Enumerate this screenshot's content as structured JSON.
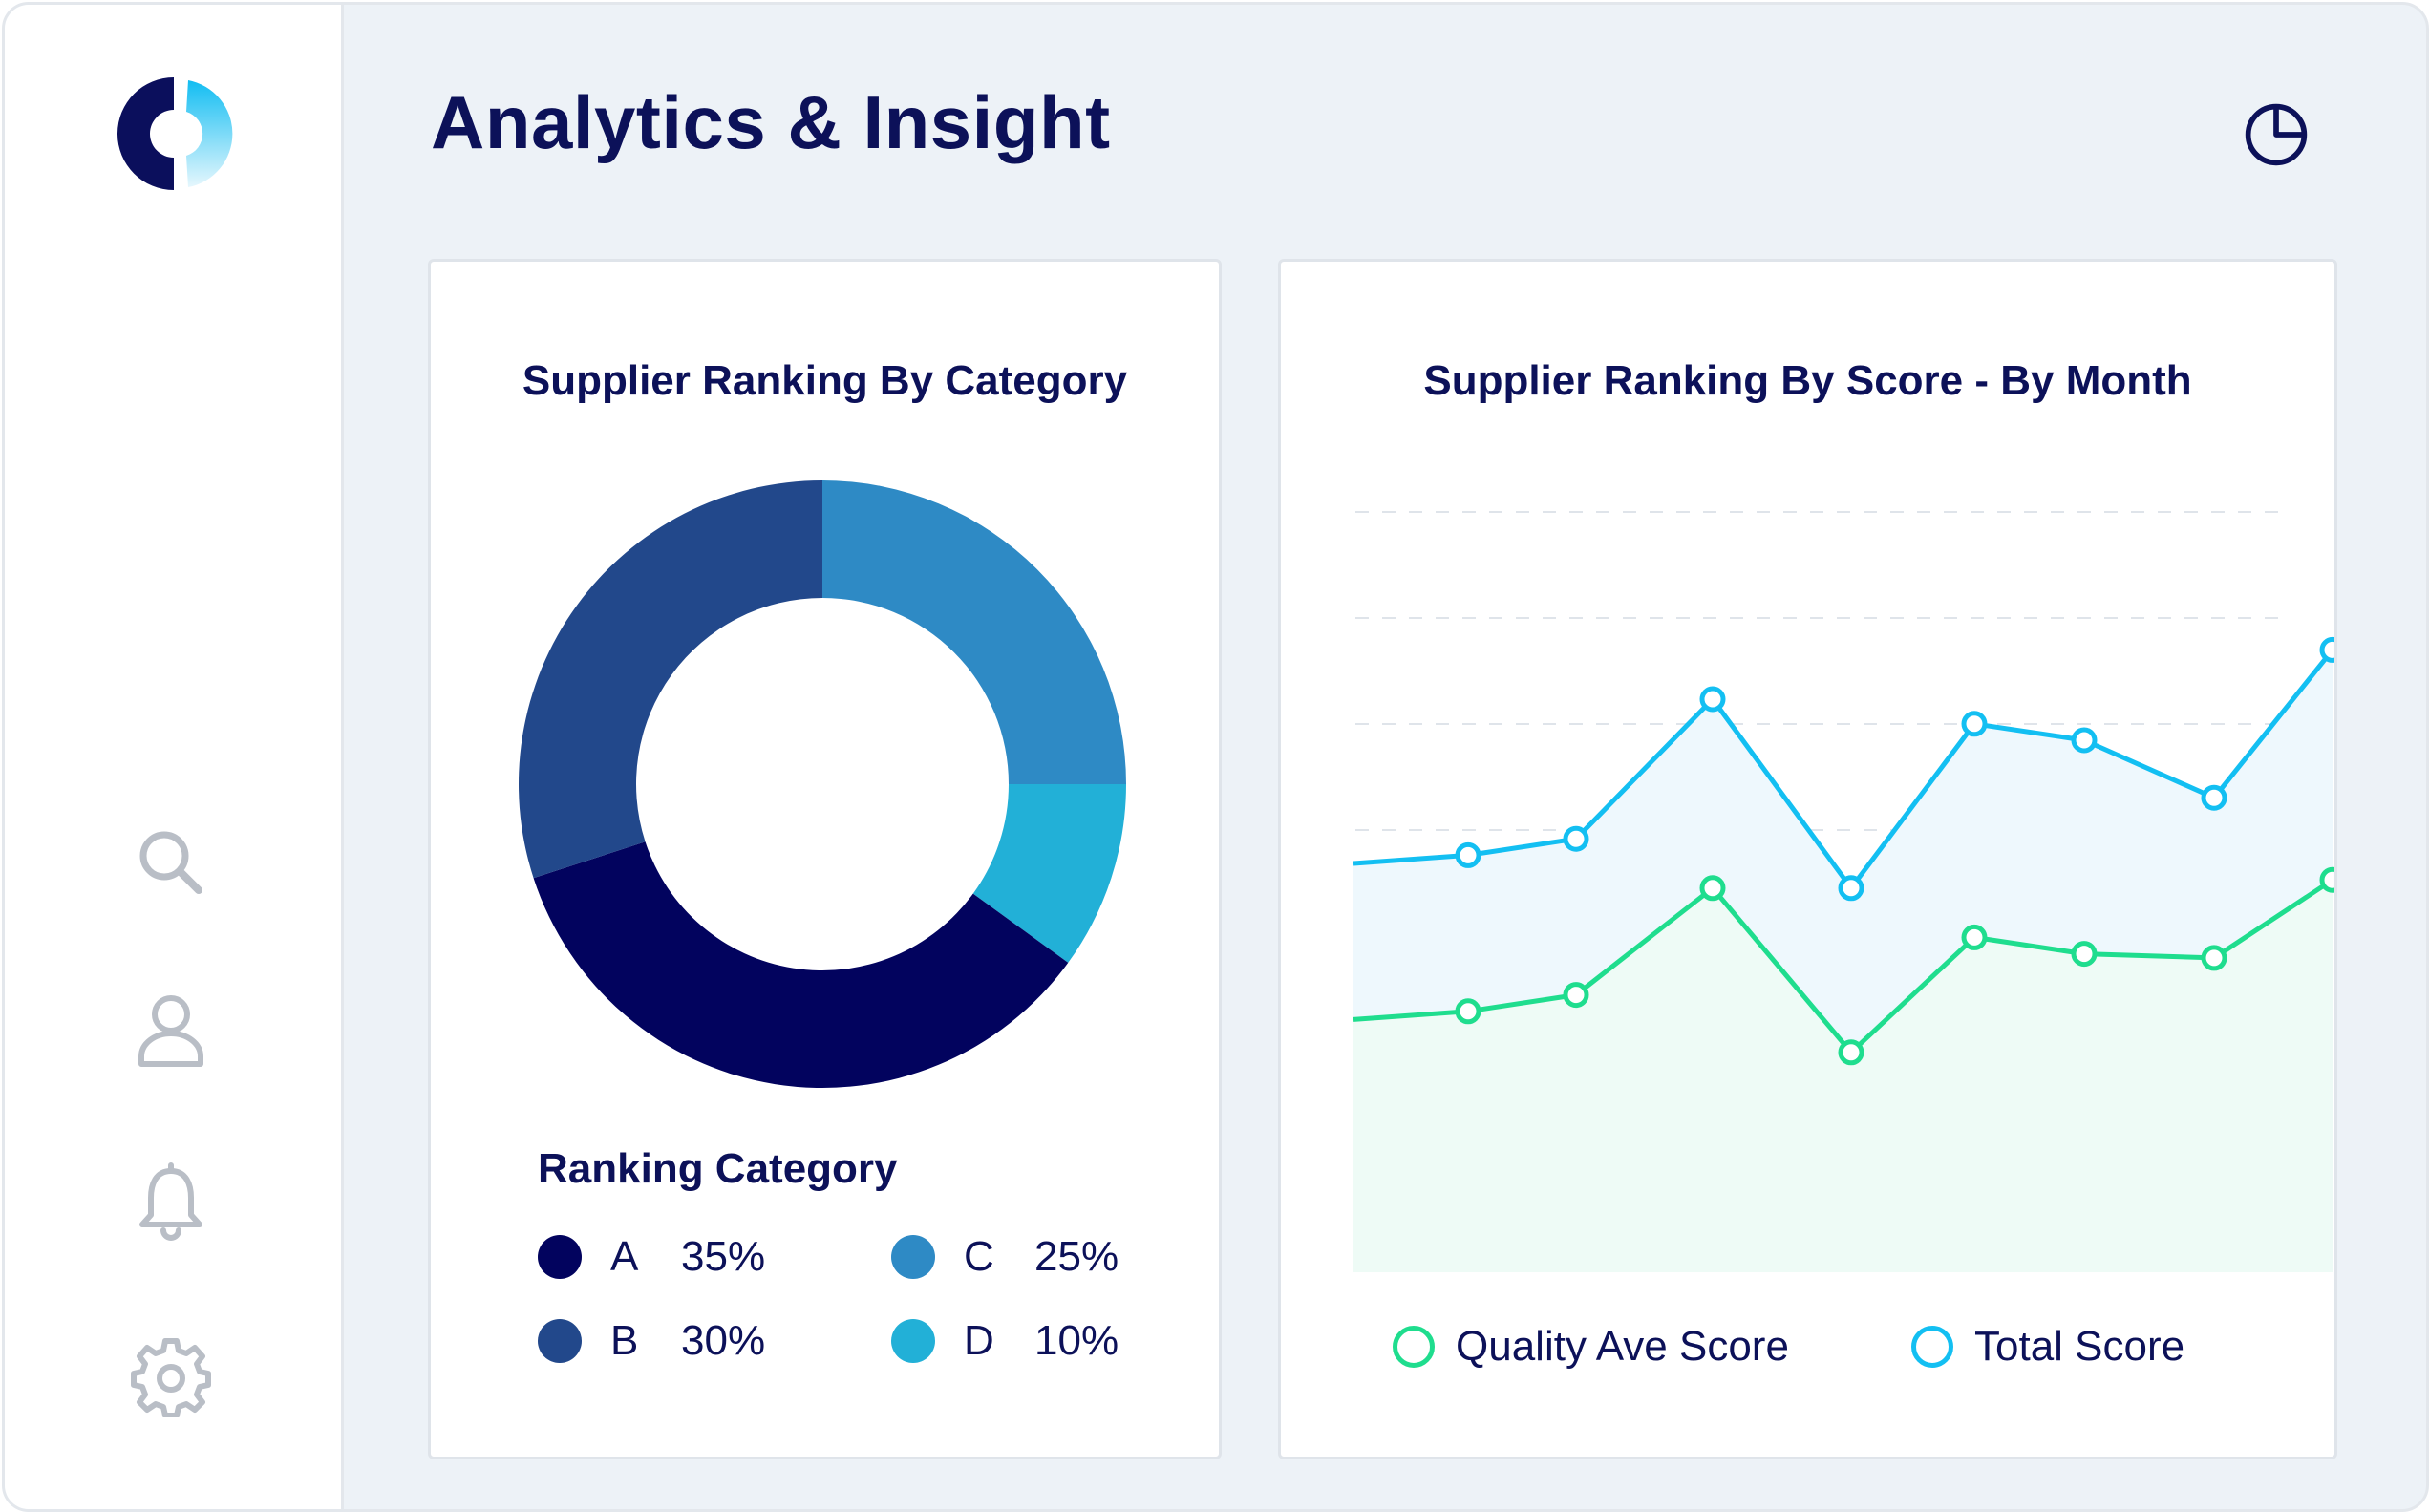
{
  "header": {
    "title": "Analytics & Insight"
  },
  "sidebar": {
    "icons": [
      "search-icon",
      "user-icon",
      "bell-icon",
      "gear-icon"
    ]
  },
  "donut_card": {
    "title": "Supplier Ranking By Category",
    "legend_title": "Ranking Category",
    "legend": [
      {
        "label": "A",
        "value": "35%",
        "color": "#02035e"
      },
      {
        "label": "B",
        "value": "30%",
        "color": "#22488b"
      },
      {
        "label": "C",
        "value": "25%",
        "color": "#2e8ac5"
      },
      {
        "label": "D",
        "value": "10%",
        "color": "#22b0d7"
      }
    ]
  },
  "line_card": {
    "title": "Supplier Ranking By Score - By Month",
    "legend": [
      {
        "label": "Quality Ave Score",
        "color": "#1fdd8e"
      },
      {
        "label": "Total Score",
        "color": "#13bff2"
      }
    ]
  },
  "chart_data": [
    {
      "type": "pie",
      "title": "Supplier Ranking By Category",
      "legend_title": "Ranking Category",
      "categories": [
        "A",
        "B",
        "C",
        "D"
      ],
      "values": [
        35,
        30,
        25,
        10
      ],
      "colors": [
        "#02035e",
        "#22488b",
        "#2e8ac5",
        "#22b0d7"
      ],
      "donut": true
    },
    {
      "type": "area",
      "title": "Supplier Ranking By Score - By Month",
      "x": [
        0,
        1,
        2,
        3,
        4,
        5,
        6,
        7
      ],
      "ylim": [
        0,
        100
      ],
      "grid": "dashed horizontal",
      "series": [
        {
          "name": "Total Score",
          "color": "#13bff2",
          "values": [
            51,
            53,
            70,
            47,
            67,
            65,
            58,
            76
          ],
          "start": 50
        },
        {
          "name": "Quality Ave Score",
          "color": "#1fdd8e",
          "values": [
            32,
            34,
            47,
            27,
            41,
            39,
            38.5,
            48
          ],
          "start": 31
        }
      ]
    }
  ]
}
